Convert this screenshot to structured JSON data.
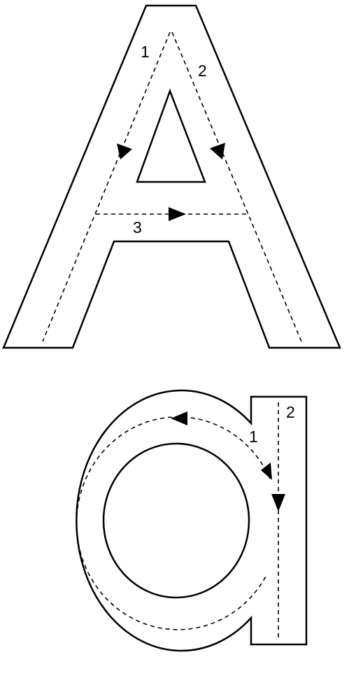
{
  "uppercase_letter": {
    "character": "A",
    "strokes": [
      {
        "label": "1"
      },
      {
        "label": "2"
      },
      {
        "label": "3"
      }
    ]
  },
  "lowercase_letter": {
    "character": "a",
    "strokes": [
      {
        "label": "1"
      },
      {
        "label": "2"
      }
    ]
  },
  "colors": {
    "line": "#000000",
    "fill": "#ffffff"
  }
}
